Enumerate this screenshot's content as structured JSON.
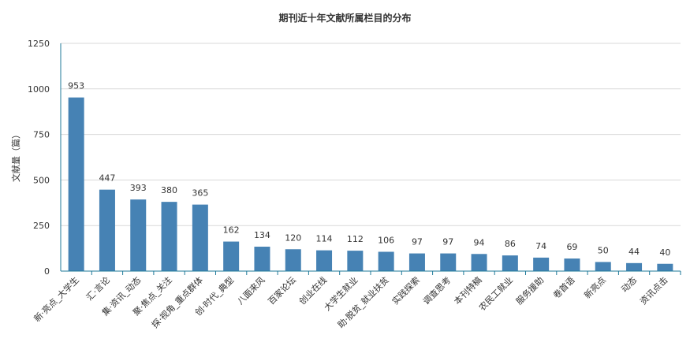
{
  "chart_data": {
    "type": "bar",
    "title": "期刊近十年文献所属栏目的分布",
    "xlabel": "",
    "ylabel": "文献量（篇）",
    "ylim": [
      0,
      1250
    ],
    "yticks": [
      0,
      250,
      500,
      750,
      1000,
      1250
    ],
    "grid": true,
    "legend": "none",
    "bar_color": "#4682b4",
    "axis_color": "#1f7a99",
    "categories": [
      "新·亮点_大学生",
      "汇·言论",
      "集·资讯_动态",
      "聚·焦点_关注",
      "探·视角_重点群体",
      "创·时代_典型",
      "八面来风",
      "百家论坛",
      "创业在线",
      "大学生就业",
      "助·脱贫_就业扶贫",
      "实践探索",
      "调查思考",
      "本刊特稿",
      "农民工就业",
      "服务援助",
      "卷首语",
      "新亮点",
      "动态",
      "资讯点击"
    ],
    "values": [
      953,
      447,
      393,
      380,
      365,
      162,
      134,
      120,
      114,
      112,
      106,
      97,
      97,
      94,
      86,
      74,
      69,
      50,
      44,
      40
    ]
  }
}
